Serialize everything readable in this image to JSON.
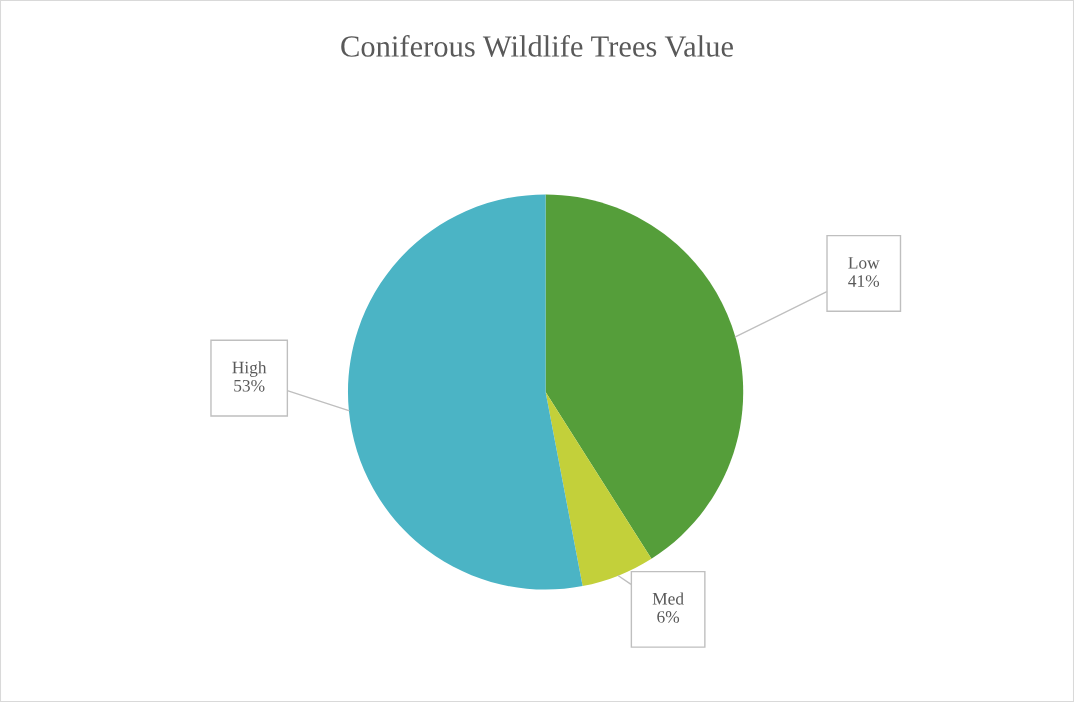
{
  "chart_data": {
    "type": "pie",
    "title": "Coniferous Wildlife Trees Value",
    "categories": [
      "Low",
      "Med",
      "High"
    ],
    "values": [
      41,
      6,
      53
    ],
    "colors": [
      "#559e3a",
      "#c3d03a",
      "#4bb4c5"
    ],
    "value_labels": [
      "41%",
      "6%",
      "53%"
    ],
    "legend": false
  }
}
